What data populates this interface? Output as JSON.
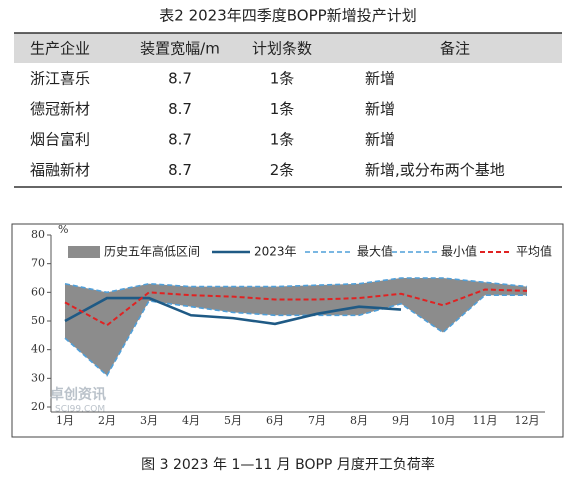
{
  "table": {
    "title": "表2  2023年四季度BOPP新增投产计划",
    "header": [
      "生产企业",
      "装置宽幅/m",
      "计划条数",
      "备注"
    ],
    "rows": [
      [
        "浙江喜乐",
        "8.7",
        "1条",
        "新增"
      ],
      [
        "德冠新材",
        "8.7",
        "1条",
        "新增"
      ],
      [
        "烟台富利",
        "8.7",
        "1条",
        "新增"
      ],
      [
        "福融新材",
        "8.7",
        "2条",
        "新增,或分布两个基地"
      ]
    ]
  },
  "chart_data": {
    "type": "line",
    "y_unit": "%",
    "categories": [
      "1月",
      "2月",
      "3月",
      "4月",
      "5月",
      "6月",
      "7月",
      "8月",
      "9月",
      "10月",
      "11月",
      "12月"
    ],
    "band": {
      "name": "历史五年高低区间",
      "color": "#8c8c8c"
    },
    "series": [
      {
        "name": "最大值",
        "color": "#4f9fd9",
        "values": [
          63,
          60,
          63,
          62,
          62,
          62,
          62.5,
          63,
          65,
          65,
          63.5,
          62
        ]
      },
      {
        "name": "最小值",
        "color": "#4f9fd9",
        "values": [
          44,
          31,
          57,
          55,
          53,
          52,
          52,
          52,
          56,
          46,
          59,
          59
        ]
      },
      {
        "name": "2023年",
        "color": "#1f5a85",
        "values": [
          50,
          58,
          58,
          52,
          51,
          49,
          52.5,
          55,
          54,
          null,
          null,
          null
        ]
      },
      {
        "name": "平均值",
        "color": "#e02222",
        "values": [
          56.5,
          48.5,
          60,
          59,
          58.5,
          57.5,
          57.5,
          58,
          59.5,
          55.5,
          61,
          60.5
        ]
      }
    ],
    "ylim": [
      20,
      80
    ],
    "yticks": [
      20,
      30,
      40,
      50,
      60,
      70,
      80
    ]
  },
  "watermark": {
    "name": "卓创资讯",
    "site": "SCI99.COM"
  },
  "caption": "图 3 2023 年 1—11 月 BOPP 月度开工负荷率"
}
